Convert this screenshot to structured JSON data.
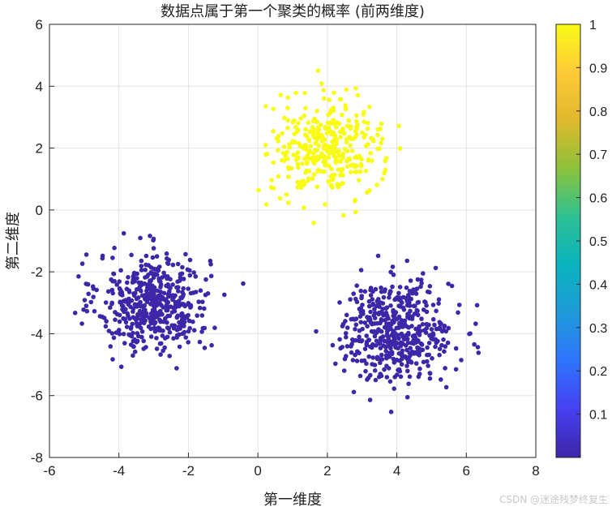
{
  "chart_data": {
    "type": "scatter",
    "title": "数据点属于第一个聚类的概率 (前两维度)",
    "xlabel": "第一维度",
    "ylabel": "第二维度",
    "xlim": [
      -6,
      8
    ],
    "ylim": [
      -8,
      6
    ],
    "xticks": [
      "-6",
      "-4",
      "-2",
      "0",
      "2",
      "4",
      "6",
      "8"
    ],
    "yticks": [
      "-8",
      "-6",
      "-4",
      "-2",
      "0",
      "2",
      "4",
      "6"
    ],
    "grid": true,
    "clusters": [
      {
        "center": [
          -3.0,
          -3.0
        ],
        "count": 500,
        "probability": 0.0
      },
      {
        "center": [
          4.0,
          -3.9
        ],
        "count": 500,
        "probability": 0.0
      },
      {
        "center": [
          2.0,
          2.0
        ],
        "count": 350,
        "probability": 1.0
      }
    ],
    "colorbar": {
      "range": [
        0,
        1
      ],
      "ticks": [
        "0.1",
        "0.2",
        "0.3",
        "0.4",
        "0.5",
        "0.6",
        "0.7",
        "0.8",
        "0.9",
        "1"
      ],
      "colormap": [
        "#3e26a8",
        "#4640f2",
        "#2f74fc",
        "#1e9ad9",
        "#0ab4bd",
        "#2dc194",
        "#8cc23a",
        "#dfb82c",
        "#feca37",
        "#f9fb15"
      ]
    },
    "low_color": "#3e26a8",
    "high_color": "#f9fb15"
  },
  "watermark": "CSDN @迷途残梦终复生"
}
